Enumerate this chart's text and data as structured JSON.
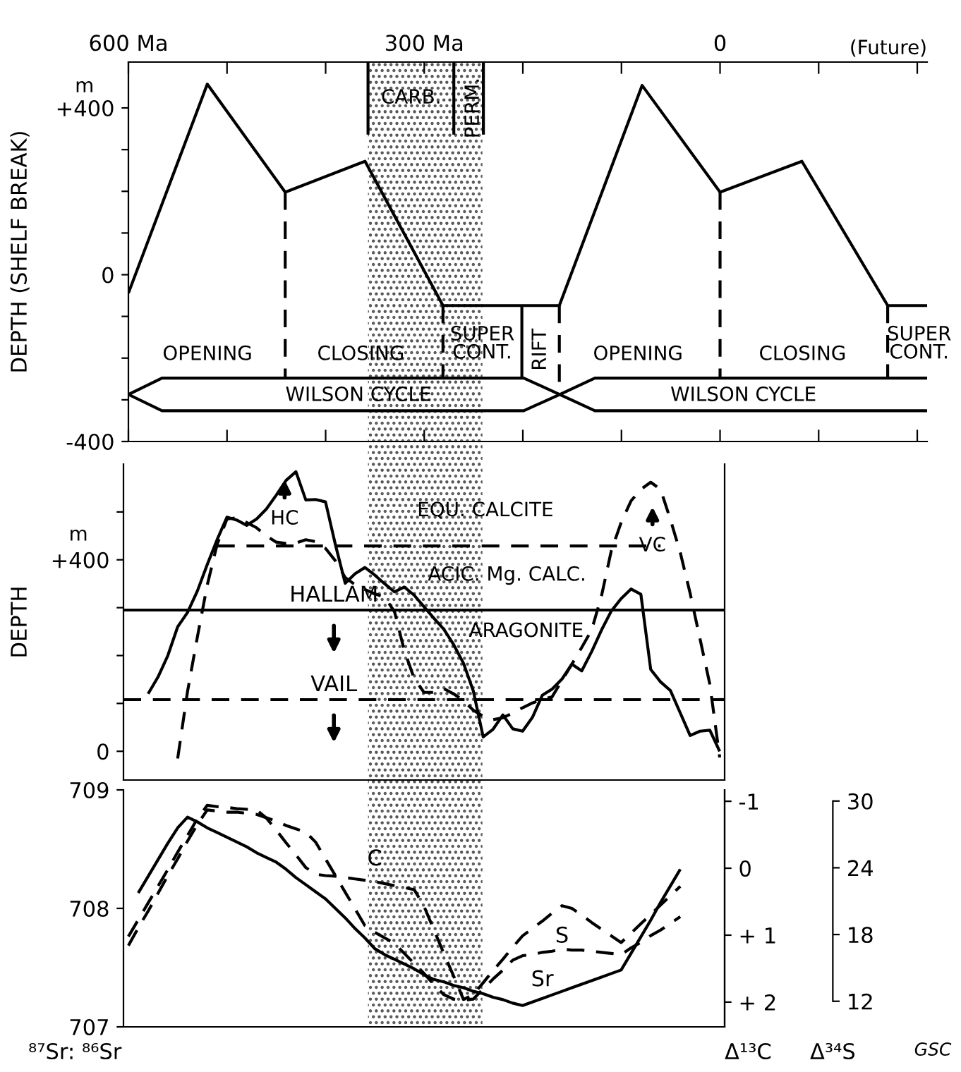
{
  "chart_data": [
    {
      "type": "line",
      "ylabel": "DEPTH (SHELF BREAK)",
      "xlim": [
        600,
        -210
      ],
      "ylim": [
        -400,
        510
      ],
      "xticks": [
        {
          "value": 600,
          "label": "600 Ma"
        },
        {
          "value": 500,
          "label": null
        },
        {
          "value": 400,
          "label": null
        },
        {
          "value": 300,
          "label": "300 Ma"
        },
        {
          "value": 200,
          "label": null
        },
        {
          "value": 100,
          "label": null
        },
        0,
        {
          "value": -100,
          "label": null
        },
        {
          "value": -200,
          "label": null
        }
      ],
      "yticks": [
        {
          "value": 400,
          "label": "+400"
        },
        {
          "value": 300,
          "label": null
        },
        {
          "value": 200,
          "label": null
        },
        {
          "value": 100,
          "label": null
        },
        0,
        {
          "value": -100,
          "label": null
        },
        {
          "value": -200,
          "label": null
        },
        {
          "value": -300,
          "label": null
        },
        -400
      ],
      "series": [
        {
          "color": "#000000",
          "line_style": "solid",
          "x": [
            600,
            520,
            441,
            360,
            281,
            163,
            79,
            0,
            -83,
            -170,
            -210
          ],
          "values": [
            -44,
            457,
            198,
            272,
            -74,
            -74,
            454,
            198,
            272,
            -74,
            -74
          ]
        },
        {
          "color": "#000000",
          "line_style": "dashed",
          "x": [
            441,
            441
          ],
          "values": [
            198,
            -248
          ]
        },
        {
          "color": "#000000",
          "line_style": "dashed",
          "x": [
            281,
            281
          ],
          "values": [
            -74,
            -248
          ]
        },
        {
          "color": "#000000",
          "line_style": "dashed",
          "x": [
            163,
            163
          ],
          "values": [
            -74,
            -287
          ]
        },
        {
          "color": "#000000",
          "line_style": "dashed",
          "x": [
            0,
            0
          ],
          "values": [
            198,
            -248
          ]
        },
        {
          "color": "#000000",
          "line_style": "dashed",
          "x": [
            -170,
            -170
          ],
          "values": [
            -74,
            -248
          ]
        },
        {
          "color": "#000000",
          "line_style": "solid",
          "x": [
            201,
            201
          ],
          "values": [
            -74,
            -248
          ]
        },
        {
          "color": "#000000",
          "line_style": "solid",
          "x": [
            357,
            357
          ],
          "values": [
            510,
            336
          ]
        },
        {
          "color": "#000000",
          "line_style": "solid",
          "x": [
            270,
            270
          ],
          "values": [
            510,
            336
          ]
        },
        {
          "color": "#000000",
          "line_style": "solid",
          "x": [
            240,
            240
          ],
          "values": [
            510,
            336
          ]
        }
      ],
      "bands": [
        {
          "axis": "x",
          "from": 357,
          "to": 241,
          "color": "#555555"
        }
      ],
      "annotations": [
        "OPENING",
        "CLOSING",
        "SUPER\nCONT.",
        "RIFT",
        "OPENING",
        "CLOSING",
        "SUPER\nCONT.",
        "WILSON CYCLE",
        "WILSON CYCLE",
        "CARB.",
        "PERM.",
        "(Future)",
        "m"
      ]
    },
    {
      "type": "line",
      "ylabel": "DEPTH",
      "ylim": [
        -60,
        600
      ],
      "tick_labels": "y",
      "categories": [
        null,
        null,
        null,
        null,
        null,
        null,
        null,
        null,
        null,
        null,
        null,
        null,
        null,
        null,
        null,
        null,
        null,
        null,
        null,
        null,
        null,
        null,
        null,
        null,
        null,
        null,
        null,
        null,
        null,
        null,
        null,
        null,
        null,
        null,
        null,
        null,
        null,
        null,
        null,
        null,
        null,
        null,
        null,
        null,
        null,
        null,
        null,
        null,
        null,
        null,
        null,
        null,
        null,
        null,
        null,
        null,
        null,
        null,
        null,
        null,
        null
      ],
      "yticks": [
        0,
        {
          "value": 100,
          "label": null
        },
        {
          "value": 200,
          "label": null
        },
        {
          "value": 300,
          "label": null
        },
        {
          "value": 400,
          "label": "+400"
        },
        {
          "value": 500,
          "label": null
        }
      ],
      "series": [
        {
          "color": "#000000",
          "line_style": "solid",
          "values": [
            null,
            null,
            120,
            155,
            200,
            260,
            290,
            335,
            390,
            442,
            489,
            483,
            472,
            485,
            506,
            535,
            566,
            584,
            525,
            526,
            521,
            432,
            351,
            371,
            384,
            368,
            350,
            333,
            343,
            326,
            302,
            278,
            255,
            223,
            184,
            126,
            30,
            46,
            76,
            47,
            42,
            71,
            117,
            130,
            151,
            182,
            168,
            208,
            253,
            293,
            319,
            339,
            328,
            171,
            145,
            127,
            80,
            33,
            42,
            44,
            0
          ]
        },
        {
          "color": "#000000",
          "line_style": "dashed",
          "values": [
            null,
            null,
            null,
            null,
            null,
            -15,
            125,
            239,
            347,
            432,
            485,
            488,
            478,
            467,
            450,
            437,
            434,
            435,
            442,
            438,
            424,
            398,
            363,
            348,
            338,
            329,
            322,
            292,
            210,
            152,
            123,
            123,
            131,
            120,
            106,
            86,
            73,
            66,
            70,
            80,
            91,
            101,
            108,
            114,
            148,
            182,
            217,
            253,
            324,
            419,
            478,
            523,
            547,
            562,
            547,
            484,
            415,
            330,
            235,
            140,
            -13
          ]
        },
        {
          "color": "#000000",
          "line_style": "dashed",
          "values": [
            null,
            null,
            null,
            null,
            null,
            null,
            null,
            null,
            null,
            429,
            429,
            429,
            429,
            429,
            429,
            429,
            429,
            429,
            429,
            429,
            429,
            429,
            429,
            429,
            429,
            429,
            429,
            429,
            429,
            429,
            429,
            429,
            429,
            429,
            429,
            429,
            429,
            429,
            429,
            429,
            429,
            429,
            429,
            429,
            429,
            429,
            429,
            429,
            429,
            429,
            429,
            429,
            429,
            429,
            429,
            null,
            null,
            null,
            null,
            null,
            null
          ]
        }
      ],
      "ref_lines": [
        {
          "axis": "y",
          "value": 295,
          "label": "HALLAM",
          "color": "#000000",
          "line_style": "solid"
        },
        {
          "axis": "y",
          "value": 108,
          "label": "VAIL",
          "color": "#000000",
          "line_style": "dashed"
        }
      ],
      "annotations": [
        "EQU. CALCITE",
        "ACIC. Mg. CALC.",
        "ARAGONITE",
        "HC",
        "VC",
        "m"
      ]
    },
    {
      "type": "line",
      "ylabel": "⁸⁷Sr: ⁸⁶Sr",
      "y2label": "Δ¹³C",
      "y3label": "Δ³⁴S",
      "ylim": [
        707,
        709
      ],
      "tick_labels": "y",
      "categories": [
        null,
        null,
        null,
        null,
        null,
        null,
        null,
        null,
        null,
        null,
        null,
        null,
        null,
        null,
        null,
        null,
        null,
        null,
        null,
        null,
        null,
        null,
        null,
        null,
        null,
        null,
        null,
        null,
        null,
        null,
        null,
        null,
        null,
        null,
        null,
        null,
        null,
        null,
        null,
        null,
        null,
        null,
        null,
        null,
        null,
        null,
        null,
        null,
        null,
        null,
        null,
        null,
        null,
        null,
        null,
        null,
        null,
        null,
        null,
        null,
        null
      ],
      "yticks": [
        707,
        708,
        709
      ],
      "y2lim": [
        2.37,
        -1.17
      ],
      "y2ticks": [
        {
          "value": -1,
          "label": "-1"
        },
        0,
        {
          "value": 1,
          "label": "+ 1"
        },
        {
          "value": 2,
          "label": "+ 2"
        }
      ],
      "y3lim": [
        9.7,
        31.0
      ],
      "y3ticks": [
        12,
        18,
        24,
        30
      ],
      "series": [
        {
          "name": "Sr",
          "color": "#000000",
          "line_style": "solid",
          "values": [
            null,
            708.13,
            708.27,
            708.41,
            708.55,
            708.68,
            708.77,
            708.73,
            708.68,
            708.64,
            708.6,
            708.56,
            708.52,
            708.47,
            708.43,
            708.39,
            708.33,
            708.26,
            708.2,
            708.14,
            708.08,
            708.0,
            707.92,
            707.83,
            707.75,
            707.66,
            707.61,
            707.57,
            707.53,
            707.49,
            707.44,
            707.4,
            707.38,
            707.35,
            707.33,
            707.3,
            707.28,
            707.25,
            707.23,
            707.2,
            707.18,
            707.21,
            707.24,
            707.27,
            707.3,
            707.33,
            707.36,
            707.39,
            707.42,
            707.45,
            707.48,
            707.62,
            707.76,
            707.9,
            708.05,
            708.19,
            708.33,
            null,
            null,
            null,
            null
          ]
        },
        {
          "name": "C",
          "axis": "y2",
          "color": "#000000",
          "line_style": "dashed",
          "values": [
            1.02,
            0.77,
            0.52,
            0.27,
            0.02,
            -0.24,
            -0.49,
            -0.74,
            -0.94,
            -0.92,
            -0.91,
            -0.89,
            -0.88,
            -0.87,
            -0.75,
            -0.57,
            -0.38,
            -0.2,
            -0.01,
            0.09,
            0.11,
            0.12,
            0.14,
            0.16,
            0.18,
            0.2,
            0.23,
            0.26,
            0.29,
            0.32,
            0.57,
            0.92,
            1.27,
            1.61,
            1.96,
            1.89,
            1.71,
            1.53,
            1.36,
            1.18,
            1.01,
            0.9,
            0.79,
            0.67,
            0.56,
            0.6,
            0.7,
            0.81,
            0.91,
            1.01,
            1.11,
            0.97,
            0.83,
            0.69,
            0.55,
            0.41,
            0.27,
            null,
            null,
            null,
            null
          ]
        },
        {
          "name": "S",
          "axis": "y3",
          "color": "#000000",
          "line_style": "dashed",
          "values": [
            17.0,
            18.6,
            20.1,
            21.7,
            23.3,
            24.8,
            26.4,
            27.9,
            29.2,
            29.1,
            29.0,
            29.0,
            28.9,
            28.8,
            28.5,
            28.2,
            27.8,
            27.5,
            27.2,
            26.3,
            24.8,
            23.3,
            21.8,
            20.3,
            18.8,
            18.2,
            17.7,
            17.2,
            16.3,
            15.4,
            14.5,
            13.5,
            12.6,
            12.2,
            12.1,
            12.2,
            13.1,
            14.0,
            14.8,
            15.7,
            16.1,
            16.2,
            16.4,
            16.5,
            16.7,
            16.6,
            16.6,
            16.5,
            16.4,
            16.3,
            16.2,
            16.8,
            17.3,
            17.9,
            18.4,
            19.0,
            19.6,
            null,
            null,
            null,
            null
          ]
        }
      ],
      "annotations": [
        "GSC"
      ]
    }
  ]
}
